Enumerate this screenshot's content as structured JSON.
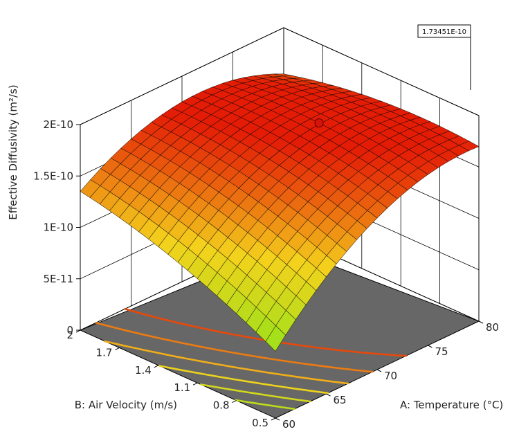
{
  "chart_data": {
    "type": "surface3d",
    "x_axis": {
      "label": "A: Temperature (°C)",
      "range": [
        60,
        80
      ],
      "ticks": [
        "60",
        "65",
        "70",
        "75",
        "80"
      ]
    },
    "y_axis": {
      "label": "B: Air Velocity (m/s)",
      "range": [
        0.5,
        2
      ],
      "ticks": [
        "0.5",
        "0.8",
        "1.1",
        "1.4",
        "1.7",
        "2"
      ]
    },
    "z_axis": {
      "label": "Effective Diffusivity (m²/s)",
      "range": [
        0,
        2e-10
      ],
      "ticks": [
        "0",
        "5E-11",
        "1E-10",
        "1.5E-10",
        "2E-10"
      ]
    },
    "surface_corners": {
      "T60_V0.5": 6.5e-11,
      "T60_V2": 1.35e-10,
      "T80_V2": 1.55e-10,
      "T80_V0.5": 1.7e-10
    },
    "max_point": {
      "temperature": 80,
      "air_velocity": 0.95,
      "value": 1.73451e-10,
      "label": "1.73451E-10"
    },
    "colors": {
      "low": "#98e21a",
      "mid": "#f4d21c",
      "high": "#e41c06",
      "floor": "#676767",
      "grid": "#000000"
    }
  }
}
